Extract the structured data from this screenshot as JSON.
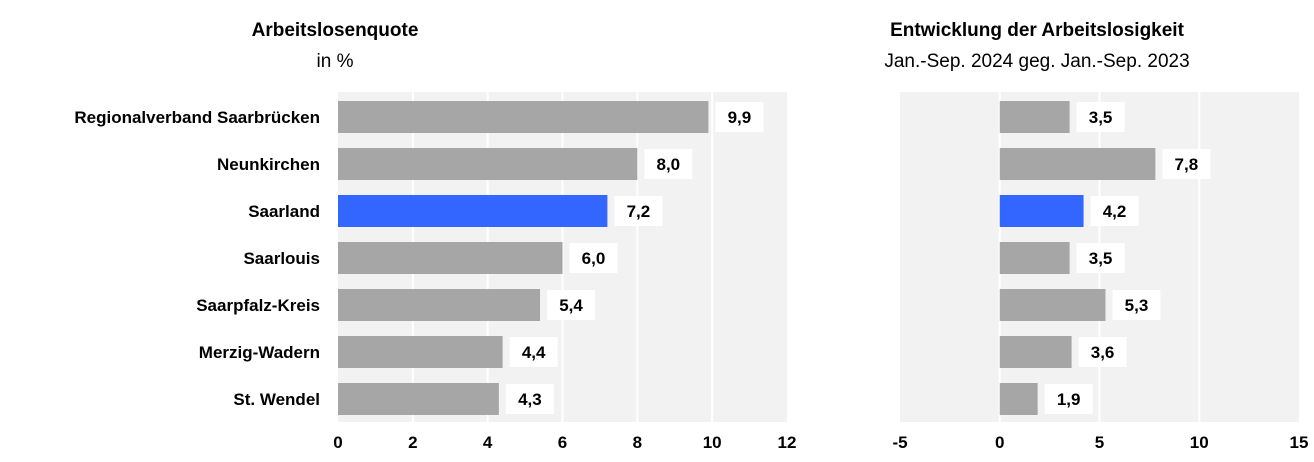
{
  "colors": {
    "bar": "#a6a6a6",
    "highlight": "#3366ff",
    "plot_bg": "#f2f2f2",
    "grid": "#ffffff"
  },
  "chart_data": [
    {
      "type": "bar",
      "orientation": "horizontal",
      "title": "Arbeitslosenquote",
      "subtitle": "in %",
      "categories": [
        "Regionalverband Saarbrücken",
        "Neunkirchen",
        "Saarland",
        "Saarlouis",
        "Saarpfalz-Kreis",
        "Merzig-Wadern",
        "St. Wendel"
      ],
      "values": [
        9.9,
        8.0,
        7.2,
        6.0,
        5.4,
        4.4,
        4.3
      ],
      "value_labels": [
        "9,9",
        "8,0",
        "7,2",
        "6,0",
        "5,4",
        "4,4",
        "4,3"
      ],
      "highlight": "Saarland",
      "xlim": [
        0,
        12
      ],
      "ticks": [
        0,
        2,
        4,
        6,
        8,
        10,
        12
      ],
      "tick_labels": [
        "0",
        "2",
        "4",
        "6",
        "8",
        "10",
        "12"
      ],
      "grid": true
    },
    {
      "type": "bar",
      "orientation": "horizontal",
      "title": "Entwicklung der Arbeitslosigkeit",
      "subtitle": "Jan.-Sep. 2024 geg. Jan.-Sep. 2023",
      "categories": [
        "Regionalverband Saarbrücken",
        "Neunkirchen",
        "Saarland",
        "Saarlouis",
        "Saarpfalz-Kreis",
        "Merzig-Wadern",
        "St. Wendel"
      ],
      "values": [
        3.5,
        7.8,
        4.2,
        3.5,
        5.3,
        3.6,
        1.9
      ],
      "value_labels": [
        "3,5",
        "7,8",
        "4,2",
        "3,5",
        "5,3",
        "3,6",
        "1,9"
      ],
      "highlight": "Saarland",
      "xlim": [
        -5,
        15
      ],
      "ticks": [
        -5,
        0,
        5,
        10,
        15
      ],
      "tick_labels": [
        "-5",
        "0",
        "5",
        "10",
        "15"
      ],
      "grid": true
    }
  ]
}
